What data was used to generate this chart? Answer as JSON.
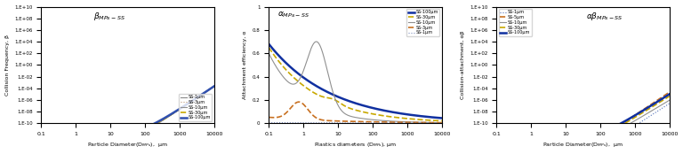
{
  "subplot1": {
    "xlabel": "Particle Diameter(D$_{MPs}$),  μm",
    "ylabel": "Collision Frequency, β",
    "ylim": [
      1e-10,
      10000000000.0
    ],
    "xlim": [
      0.1,
      10000
    ],
    "ss_sizes": [
      1,
      3,
      10,
      30,
      100
    ],
    "legend": [
      "SS-1μm",
      "SS-3μm",
      "SS-10μm",
      "SS-30μm",
      "SS-100μm"
    ],
    "line_styles": [
      "solid",
      "dotted",
      "solid",
      "dashed",
      "solid"
    ],
    "line_colors": [
      "#888888",
      "#C09878",
      "#909090",
      "#C8A800",
      "#3050B0"
    ],
    "line_widths": [
      0.8,
      0.8,
      0.8,
      1.2,
      1.8
    ]
  },
  "subplot2": {
    "xlabel": "Plastics diameters (D$_{MPs}$), μm",
    "ylabel": "Attachment efficiency, α",
    "ylim": [
      0,
      1.0
    ],
    "xlim": [
      0.1,
      10000
    ],
    "ss_sizes": [
      100,
      30,
      10,
      3,
      1
    ],
    "legend": [
      "SS-100μm",
      "SS-30μm",
      "SS-10μm",
      "SS-3μm",
      "SS-1μm"
    ],
    "line_styles": [
      "solid",
      "dashed",
      "solid",
      "dashed",
      "dotted"
    ],
    "line_colors": [
      "#1030A0",
      "#C8A800",
      "#909090",
      "#C87020",
      "#8090C0"
    ],
    "line_widths": [
      1.8,
      1.2,
      0.8,
      1.2,
      0.8
    ]
  },
  "subplot3": {
    "xlabel": "Particle Diameter(D$_{MPs}$),  μm",
    "ylabel": "Collision-attachment, αβ",
    "ylim": [
      1e-10,
      10000000000.0
    ],
    "xlim": [
      0.1,
      10000
    ],
    "ss_sizes": [
      1,
      5,
      10,
      30,
      100
    ],
    "legend": [
      "SS-1μm",
      "SS-5μm",
      "SS-10μm",
      "SS-30μm",
      "SS-100μm"
    ],
    "line_styles": [
      "dotted",
      "dashed",
      "solid",
      "dashed",
      "solid"
    ],
    "line_colors": [
      "#5070B8",
      "#C87020",
      "#909090",
      "#C8A800",
      "#1030A0"
    ],
    "line_widths": [
      0.8,
      1.2,
      0.8,
      1.2,
      1.8
    ]
  }
}
